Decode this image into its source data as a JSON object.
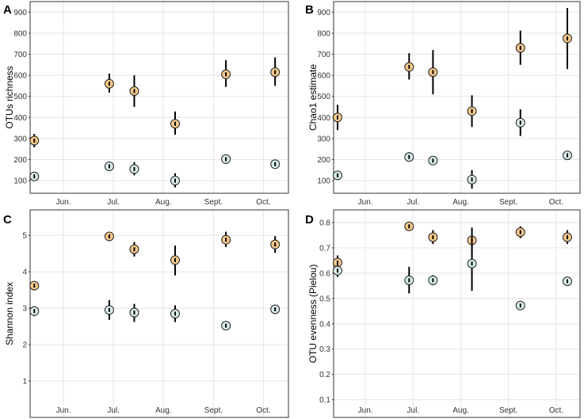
{
  "figure": {
    "colors": {
      "series_a": "#f5c98a",
      "series_b": "#d8ecec",
      "grid": "#e5e5e5",
      "frame": "#333333"
    }
  },
  "chart_data": [
    {
      "panel_letter": "A",
      "type": "scatter",
      "ylabel": "OTUs richness",
      "xlabel": "",
      "ylim": [
        40,
        950
      ],
      "yticks": [
        100,
        200,
        300,
        400,
        500,
        600,
        700,
        800,
        900
      ],
      "xlim": [
        0,
        6.2
      ],
      "xticks": [
        {
          "x": 0.8,
          "label": "Jun."
        },
        {
          "x": 2.0,
          "label": "Jul."
        },
        {
          "x": 3.2,
          "label": "Aug."
        },
        {
          "x": 4.4,
          "label": "Sept."
        },
        {
          "x": 5.6,
          "label": "Oct."
        }
      ],
      "series": [
        {
          "name": "series_a",
          "color": "#f5c98a",
          "points": [
            {
              "x": 0.1,
              "y": 290,
              "lo": 258,
              "hi": 322
            },
            {
              "x": 1.9,
              "y": 560,
              "lo": 518,
              "hi": 608
            },
            {
              "x": 2.5,
              "y": 525,
              "lo": 450,
              "hi": 600
            },
            {
              "x": 3.48,
              "y": 370,
              "lo": 318,
              "hi": 428
            },
            {
              "x": 4.7,
              "y": 605,
              "lo": 545,
              "hi": 672
            },
            {
              "x": 5.88,
              "y": 615,
              "lo": 550,
              "hi": 685
            }
          ]
        },
        {
          "name": "series_b",
          "color": "#d8ecec",
          "points": [
            {
              "x": 0.1,
              "y": 120,
              "lo": 112,
              "hi": 128
            },
            {
              "x": 1.9,
              "y": 168,
              "lo": 160,
              "hi": 176
            },
            {
              "x": 2.5,
              "y": 155,
              "lo": 125,
              "hi": 188
            },
            {
              "x": 3.48,
              "y": 100,
              "lo": 68,
              "hi": 135
            },
            {
              "x": 4.7,
              "y": 202,
              "lo": 194,
              "hi": 210
            },
            {
              "x": 5.88,
              "y": 178,
              "lo": 170,
              "hi": 186
            }
          ]
        }
      ]
    },
    {
      "panel_letter": "B",
      "type": "scatter",
      "ylabel": "Chao1 estimate",
      "xlabel": "",
      "ylim": [
        40,
        950
      ],
      "yticks": [
        100,
        200,
        300,
        400,
        500,
        600,
        700,
        800,
        900
      ],
      "xlim": [
        0,
        6.2
      ],
      "xticks": [
        {
          "x": 0.8,
          "label": "Jun."
        },
        {
          "x": 2.0,
          "label": "Jul."
        },
        {
          "x": 3.2,
          "label": "Aug."
        },
        {
          "x": 4.4,
          "label": "Sept."
        },
        {
          "x": 5.6,
          "label": "Oct."
        }
      ],
      "series": [
        {
          "name": "series_a",
          "color": "#f5c98a",
          "points": [
            {
              "x": 0.1,
              "y": 400,
              "lo": 340,
              "hi": 460
            },
            {
              "x": 1.9,
              "y": 640,
              "lo": 580,
              "hi": 705
            },
            {
              "x": 2.5,
              "y": 615,
              "lo": 510,
              "hi": 720
            },
            {
              "x": 3.48,
              "y": 430,
              "lo": 355,
              "hi": 505
            },
            {
              "x": 4.7,
              "y": 730,
              "lo": 650,
              "hi": 812
            },
            {
              "x": 5.88,
              "y": 775,
              "lo": 630,
              "hi": 920
            }
          ]
        },
        {
          "name": "series_b",
          "color": "#d8ecec",
          "points": [
            {
              "x": 0.1,
              "y": 125,
              "lo": 115,
              "hi": 135
            },
            {
              "x": 1.9,
              "y": 212,
              "lo": 190,
              "hi": 235
            },
            {
              "x": 2.5,
              "y": 195,
              "lo": 180,
              "hi": 210
            },
            {
              "x": 3.48,
              "y": 105,
              "lo": 62,
              "hi": 150
            },
            {
              "x": 4.7,
              "y": 375,
              "lo": 312,
              "hi": 438
            },
            {
              "x": 5.88,
              "y": 220,
              "lo": 212,
              "hi": 228
            }
          ]
        }
      ]
    },
    {
      "panel_letter": "C",
      "type": "scatter",
      "ylabel": "Shannon index",
      "xlabel": "",
      "ylim": [
        0,
        5.7
      ],
      "yticks": [
        1,
        2,
        3,
        4,
        5
      ],
      "xlim": [
        0,
        6.2
      ],
      "xticks": [
        {
          "x": 0.8,
          "label": "Jun."
        },
        {
          "x": 2.0,
          "label": "Jul."
        },
        {
          "x": 3.2,
          "label": "Aug."
        },
        {
          "x": 4.4,
          "label": "Sept."
        },
        {
          "x": 5.6,
          "label": "Oct."
        }
      ],
      "series": [
        {
          "name": "series_a",
          "color": "#f5c98a",
          "points": [
            {
              "x": 0.1,
              "y": 3.62,
              "lo": 3.55,
              "hi": 3.7
            },
            {
              "x": 1.9,
              "y": 4.97,
              "lo": 4.85,
              "hi": 5.08
            },
            {
              "x": 2.5,
              "y": 4.62,
              "lo": 4.42,
              "hi": 4.82
            },
            {
              "x": 3.48,
              "y": 4.32,
              "lo": 3.9,
              "hi": 4.72
            },
            {
              "x": 4.7,
              "y": 4.88,
              "lo": 4.68,
              "hi": 5.1
            },
            {
              "x": 5.88,
              "y": 4.75,
              "lo": 4.52,
              "hi": 4.98
            }
          ]
        },
        {
          "name": "series_b",
          "color": "#d8ecec",
          "points": [
            {
              "x": 0.1,
              "y": 2.92,
              "lo": 2.78,
              "hi": 3.05
            },
            {
              "x": 1.9,
              "y": 2.95,
              "lo": 2.68,
              "hi": 3.22
            },
            {
              "x": 2.5,
              "y": 2.88,
              "lo": 2.62,
              "hi": 3.12
            },
            {
              "x": 3.48,
              "y": 2.85,
              "lo": 2.62,
              "hi": 3.08
            },
            {
              "x": 4.7,
              "y": 2.52,
              "lo": 2.48,
              "hi": 2.56
            },
            {
              "x": 5.88,
              "y": 2.97,
              "lo": 2.93,
              "hi": 3.01
            }
          ]
        }
      ]
    },
    {
      "panel_letter": "D",
      "type": "scatter",
      "ylabel": "OTU evenness (Pielou)",
      "xlabel": "",
      "ylim": [
        0.03,
        0.85
      ],
      "yticks": [
        0.1,
        0.2,
        0.3,
        0.4,
        0.5,
        0.6,
        0.7,
        0.8
      ],
      "xlim": [
        0,
        6.2
      ],
      "xticks": [
        {
          "x": 0.8,
          "label": "Jun."
        },
        {
          "x": 2.0,
          "label": "Jul."
        },
        {
          "x": 3.2,
          "label": "Aug."
        },
        {
          "x": 4.4,
          "label": "Sept."
        },
        {
          "x": 5.6,
          "label": "Oct."
        }
      ],
      "series": [
        {
          "name": "series_a",
          "color": "#f5c98a",
          "points": [
            {
              "x": 0.1,
              "y": 0.642,
              "lo": 0.615,
              "hi": 0.67
            },
            {
              "x": 1.9,
              "y": 0.785,
              "lo": 0.772,
              "hi": 0.798
            },
            {
              "x": 2.5,
              "y": 0.742,
              "lo": 0.715,
              "hi": 0.77
            },
            {
              "x": 3.48,
              "y": 0.73,
              "lo": 0.68,
              "hi": 0.78
            },
            {
              "x": 4.7,
              "y": 0.762,
              "lo": 0.738,
              "hi": 0.785
            },
            {
              "x": 5.88,
              "y": 0.742,
              "lo": 0.715,
              "hi": 0.77
            }
          ]
        },
        {
          "name": "series_b",
          "color": "#d8ecec",
          "points": [
            {
              "x": 0.1,
              "y": 0.61,
              "lo": 0.585,
              "hi": 0.64
            },
            {
              "x": 1.9,
              "y": 0.572,
              "lo": 0.52,
              "hi": 0.625
            },
            {
              "x": 2.5,
              "y": 0.572,
              "lo": 0.552,
              "hi": 0.592
            },
            {
              "x": 3.48,
              "y": 0.638,
              "lo": 0.53,
              "hi": 0.745
            },
            {
              "x": 4.7,
              "y": 0.472,
              "lo": 0.466,
              "hi": 0.478
            },
            {
              "x": 5.88,
              "y": 0.568,
              "lo": 0.562,
              "hi": 0.574
            }
          ]
        }
      ]
    }
  ]
}
